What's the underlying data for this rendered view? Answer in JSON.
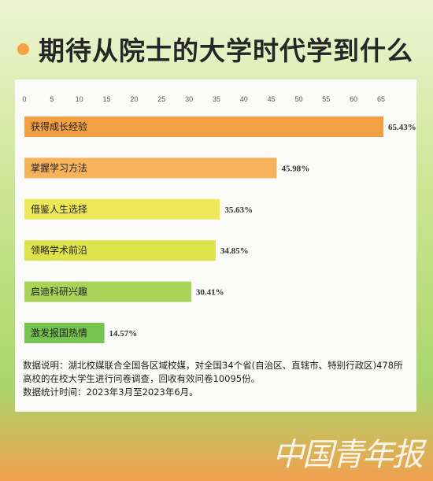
{
  "title": "期待从院士的大学时代学到什么",
  "chart_data": {
    "type": "bar",
    "orientation": "horizontal",
    "categories": [
      "获得成长经验",
      "掌握学习方法",
      "借鉴人生选择",
      "领略学术前沿",
      "启迪科研兴趣",
      "激发报国热情"
    ],
    "values": [
      65.43,
      45.98,
      35.63,
      34.85,
      30.41,
      14.57
    ],
    "value_labels": [
      "65.43%",
      "45.98%",
      "35.63%",
      "34.85%",
      "30.41%",
      "14.57%"
    ],
    "xlim": [
      0,
      65
    ],
    "xticks": [
      "0",
      "5",
      "10",
      "15",
      "20",
      "25",
      "30",
      "35",
      "40",
      "45",
      "50",
      "55",
      "60",
      "65"
    ],
    "colors": [
      "#f3a043",
      "#f6b35c",
      "#eee958",
      "#dde34a",
      "#a8d45a",
      "#78c450"
    ],
    "xlabel": "",
    "ylabel": ""
  },
  "note": {
    "line1": "数据说明：湖北校媒联合全国各区域校媒，对全国34个省(自治区、直辖市、特别行政区)478所高校的在校大学生进行问卷调查，回收有效问卷10095份。",
    "line2": "数据统计时间：2023年3月至2023年6月。"
  },
  "brand": "中国青年报"
}
